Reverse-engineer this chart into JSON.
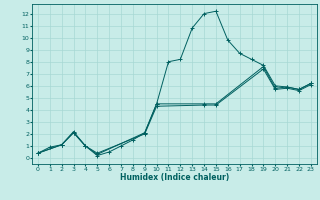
{
  "xlabel": "Humidex (Indice chaleur)",
  "bg_color": "#c8ece8",
  "line_color": "#006060",
  "grid_color": "#a8d8d4",
  "xlim": [
    -0.5,
    23.5
  ],
  "ylim": [
    -0.5,
    12.8
  ],
  "xticks": [
    0,
    1,
    2,
    3,
    4,
    5,
    6,
    7,
    8,
    9,
    10,
    11,
    12,
    13,
    14,
    15,
    16,
    17,
    18,
    19,
    20,
    21,
    22,
    23
  ],
  "yticks": [
    0,
    1,
    2,
    3,
    4,
    5,
    6,
    7,
    8,
    9,
    10,
    11,
    12
  ],
  "line1_x": [
    0,
    1,
    2,
    3,
    4,
    5,
    6,
    7,
    8,
    9,
    10,
    11,
    12,
    13,
    14,
    15,
    16,
    17,
    18,
    19,
    20,
    21,
    22,
    23
  ],
  "line1_y": [
    0.4,
    0.9,
    1.1,
    2.1,
    1.0,
    0.2,
    0.5,
    1.0,
    1.5,
    2.1,
    4.5,
    8.0,
    8.2,
    10.8,
    12.0,
    12.2,
    9.8,
    8.7,
    8.2,
    7.7,
    6.0,
    5.9,
    5.7,
    6.2
  ],
  "line2_x": [
    0,
    2,
    3,
    4,
    5,
    9,
    10,
    14,
    15,
    19,
    20,
    21,
    22,
    23
  ],
  "line2_y": [
    0.4,
    1.1,
    2.2,
    1.0,
    0.3,
    2.1,
    4.5,
    4.5,
    4.5,
    7.6,
    5.8,
    5.9,
    5.7,
    6.2
  ],
  "line3_x": [
    0,
    2,
    3,
    4,
    5,
    9,
    10,
    14,
    15,
    19,
    20,
    21,
    22,
    23
  ],
  "line3_y": [
    0.4,
    1.1,
    2.1,
    1.0,
    0.4,
    2.0,
    4.3,
    4.4,
    4.4,
    7.4,
    5.7,
    5.8,
    5.6,
    6.1
  ]
}
